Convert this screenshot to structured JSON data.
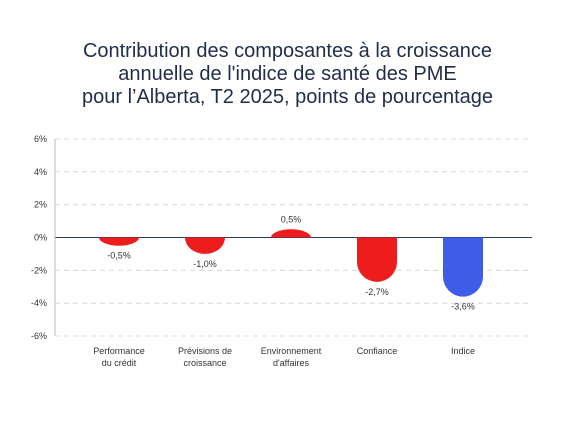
{
  "chart_data": {
    "type": "bar",
    "title_lines": [
      "Contribution des composantes à la croissance",
      "annuelle de l'indice de santé des PME",
      "pour l’Alberta, T2 2025, points de pourcentage"
    ],
    "categories": [
      [
        "Performance",
        "du crédit"
      ],
      [
        "Prévisions de",
        "croissance"
      ],
      [
        "Environnement",
        "d'affaires"
      ],
      [
        "Confiance"
      ],
      [
        "Indice"
      ]
    ],
    "values": [
      -0.5,
      -1.0,
      0.5,
      -2.7,
      -3.6
    ],
    "data_labels": [
      "-0,5%",
      "-1,0%",
      "0,5%",
      "-2,7%",
      "-3,6%"
    ],
    "bar_colors": [
      "#ee1c1c",
      "#ee1c1c",
      "#ee1c1c",
      "#ee1c1c",
      "#3d5ce8"
    ],
    "ylim": [
      -6,
      6
    ],
    "yticks": [
      6,
      4,
      2,
      0,
      -2,
      -4,
      -6
    ],
    "ytick_labels": [
      "6%",
      "4%",
      "2%",
      "0%",
      "-2%",
      "-4%",
      "-6%"
    ],
    "grid": true,
    "xlabel": "",
    "ylabel": ""
  }
}
